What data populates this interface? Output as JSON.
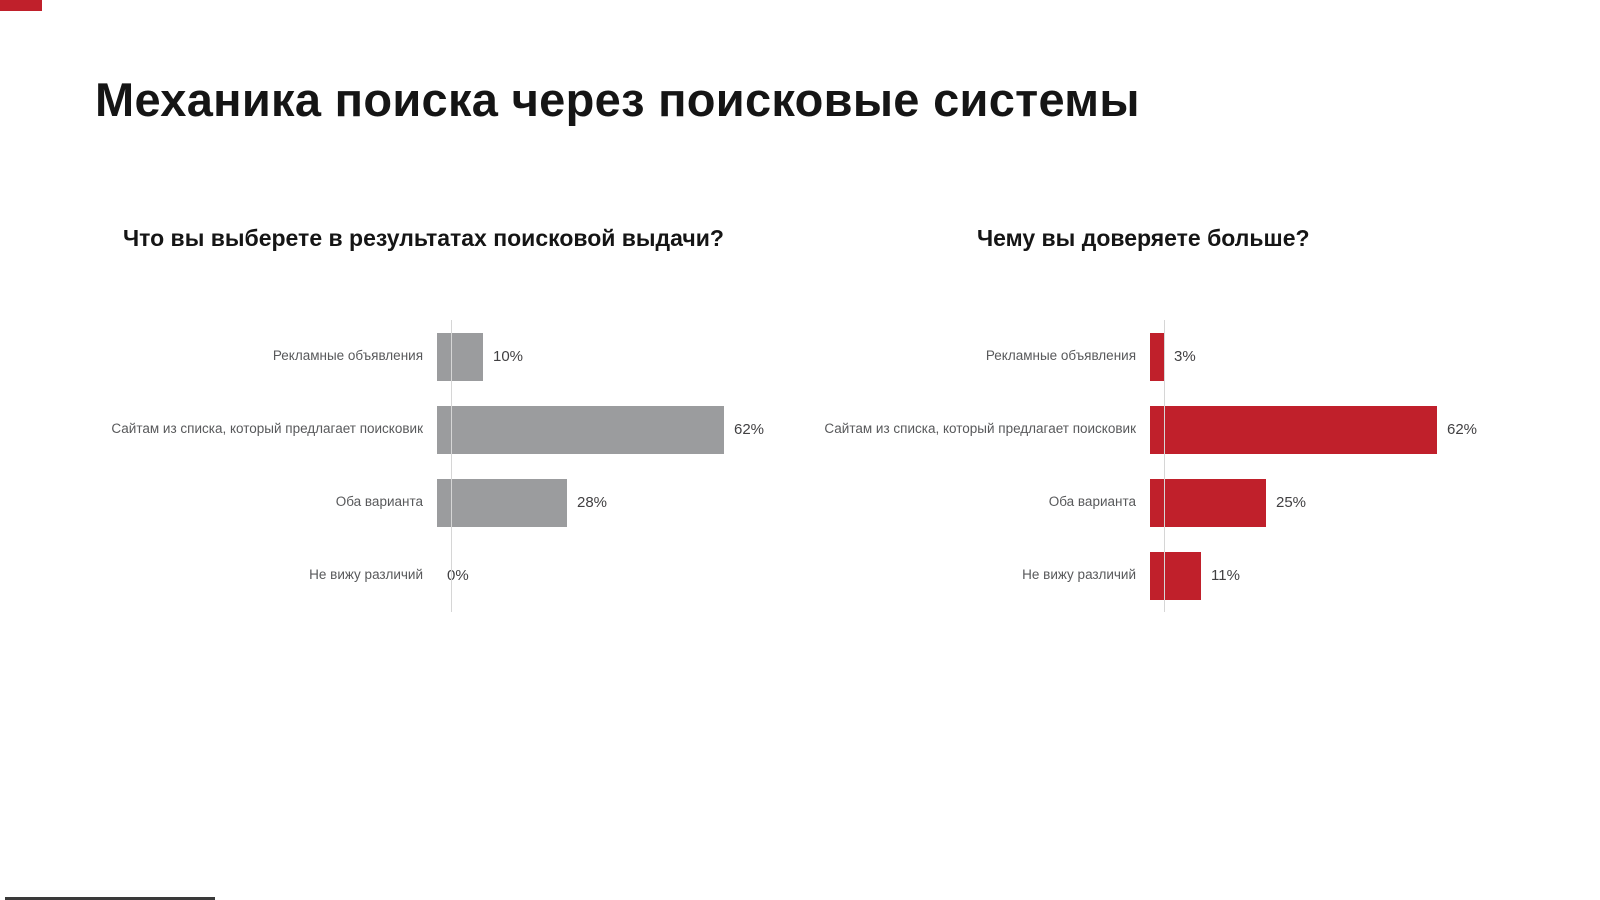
{
  "page": {
    "title": "Механика поиска через поисковые системы",
    "accent_color": "#c0202b",
    "gray_bar_color": "#9b9c9e"
  },
  "chart_data": [
    {
      "type": "bar",
      "orientation": "horizontal",
      "title": "Что вы выберете в результатах поисковой выдачи?",
      "categories": [
        "Рекламные объявления",
        "Сайтам из списка, который предлагает поисковик",
        "Оба варианта",
        "Не вижу различий"
      ],
      "values": [
        10,
        62,
        28,
        0
      ],
      "value_labels": [
        "10%",
        "62%",
        "28%",
        "0%"
      ],
      "bar_color": "#9b9c9e",
      "xlim": [
        0,
        100
      ],
      "grid": false,
      "legend": "none"
    },
    {
      "type": "bar",
      "orientation": "horizontal",
      "title": "Чему вы доверяете больше?",
      "categories": [
        "Рекламные объявления",
        "Сайтам из списка, который предлагает поисковик",
        "Оба варианта",
        "Не вижу различий"
      ],
      "values": [
        3,
        62,
        25,
        11
      ],
      "value_labels": [
        "3%",
        "62%",
        "25%",
        "11%"
      ],
      "bar_color": "#c0202b",
      "xlim": [
        0,
        100
      ],
      "grid": false,
      "legend": "none"
    }
  ]
}
